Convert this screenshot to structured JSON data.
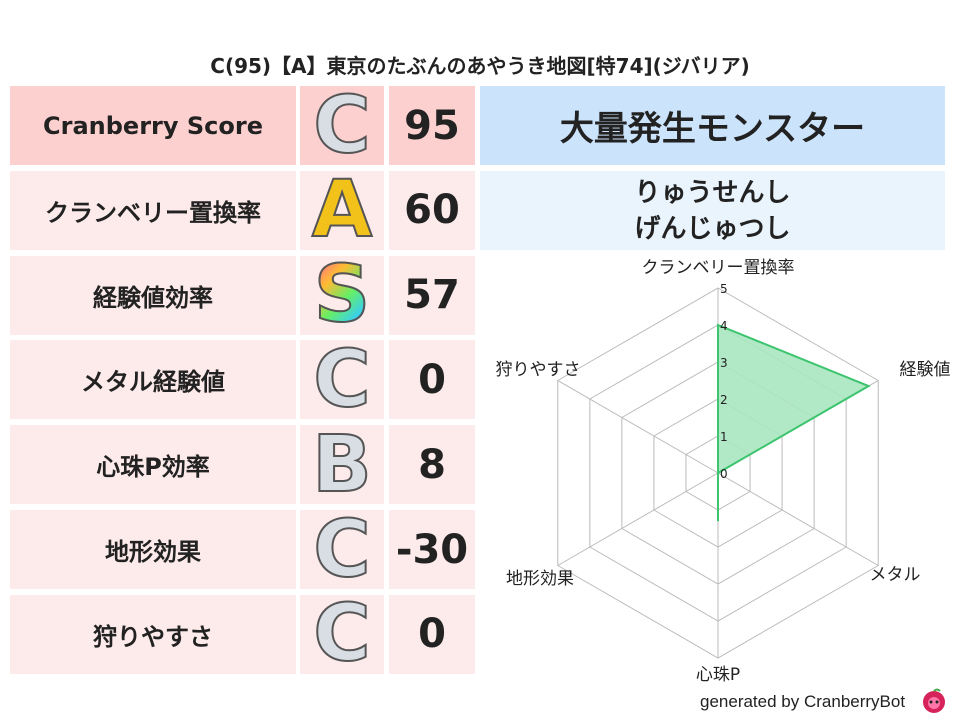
{
  "title": "C(95)【A】東京のたぶんのあやうき地図[特74](ジバリア)",
  "rows": [
    {
      "label": "Cranberry Score",
      "grade": "C",
      "value": "95"
    },
    {
      "label": "クランベリー置換率",
      "grade": "A",
      "value": "60"
    },
    {
      "label": "経験値効率",
      "grade": "S",
      "value": "57"
    },
    {
      "label": "メタル経験値",
      "grade": "C",
      "value": "0"
    },
    {
      "label": "心珠P効率",
      "grade": "B",
      "value": "8"
    },
    {
      "label": "地形効果",
      "grade": "C",
      "value": "-30"
    },
    {
      "label": "狩りやすさ",
      "grade": "C",
      "value": "0"
    }
  ],
  "monster": {
    "header": "大量発生モンスター",
    "names": [
      "りゅうせんし",
      "げんじゅつし"
    ]
  },
  "footer": "generated by CranberryBot",
  "chart_data": {
    "type": "radar",
    "axes": [
      "クランベリー置換率",
      "経験値",
      "メタル",
      "心珠P",
      "地形効果",
      "狩りやすさ"
    ],
    "values": [
      4,
      4.7,
      0,
      1.3,
      0,
      0
    ],
    "rlim": [
      0,
      5
    ],
    "ticks": [
      "0",
      "1",
      "2",
      "3",
      "4",
      "5"
    ],
    "color": "#3cc46e",
    "fill": "#a8e6c0"
  }
}
